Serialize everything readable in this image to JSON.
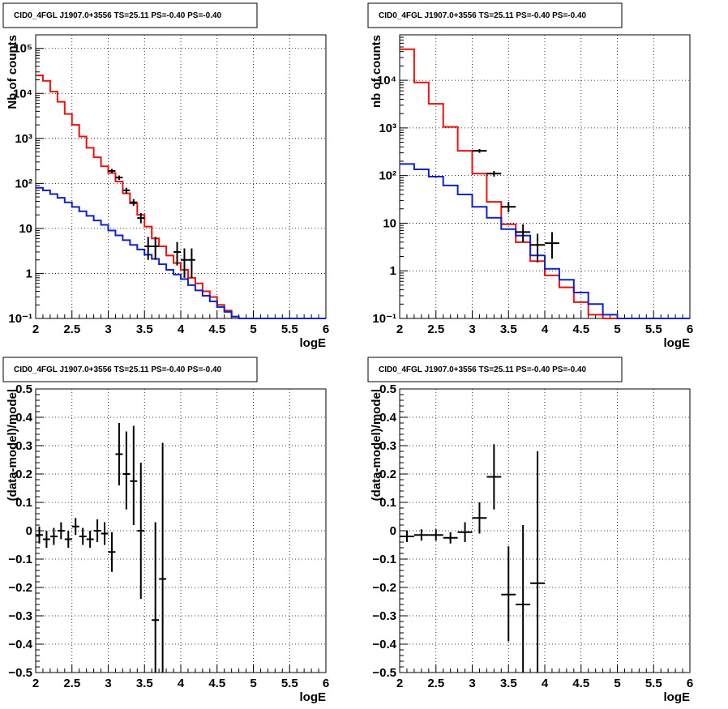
{
  "chart_data": [
    {
      "id": "top-left",
      "type": "line",
      "title": "CID0_4FGL J1907.0+3556 TS=25.11 PS=-0.40 PS=-0.40",
      "xlabel": "logE",
      "ylabel": "Nb of counts",
      "xlim": [
        2,
        6
      ],
      "ylim": [
        0.1,
        200000
      ],
      "ylog": true,
      "grid": true,
      "xticks": [
        2,
        2.5,
        3,
        3.5,
        4,
        4.5,
        5,
        5.5,
        6
      ],
      "xtick_labels": [
        "2",
        "2.5",
        "3",
        "3.5",
        "4",
        "4.5",
        "5",
        "5.5",
        "6"
      ],
      "yticks": [
        0.1,
        1,
        10,
        100,
        1000,
        10000,
        100000
      ],
      "ytick_labels": [
        "10⁻¹",
        "1",
        "10",
        "10²",
        "10³",
        "10⁴",
        "10⁵"
      ],
      "series": [
        {
          "kind": "step",
          "color": "#e8120f",
          "edges": [
            2,
            2.1,
            2.2,
            2.3,
            2.4,
            2.5,
            2.6,
            2.7,
            2.8,
            2.9,
            3.0,
            3.1,
            3.2,
            3.3,
            3.4,
            3.5,
            3.6,
            3.7,
            3.8,
            3.9,
            4.0,
            4.1,
            4.2,
            4.3,
            4.4,
            4.5,
            4.6,
            4.7,
            4.8,
            4.9,
            5.0,
            5.1,
            5.2,
            5.3,
            5.4,
            5.5,
            5.6,
            5.7,
            5.8,
            5.9,
            6.0
          ],
          "values": [
            25000,
            19000,
            11000,
            6500,
            3500,
            2000,
            1100,
            620,
            380,
            240,
            170,
            110,
            60,
            36,
            20,
            11,
            6,
            4,
            2.5,
            1.7,
            1.2,
            0.8,
            0.6,
            0.4,
            0.3,
            0.2,
            0.15,
            0.11,
            0.1,
            0.1,
            0.1,
            0.1,
            0.1,
            0.1,
            0.1,
            0.1,
            0.1,
            0.1,
            0.1,
            0.1
          ]
        },
        {
          "kind": "step",
          "color": "#0d22c8",
          "edges": [
            2,
            2.1,
            2.2,
            2.3,
            2.4,
            2.5,
            2.6,
            2.7,
            2.8,
            2.9,
            3.0,
            3.1,
            3.2,
            3.3,
            3.4,
            3.5,
            3.6,
            3.7,
            3.8,
            3.9,
            4.0,
            4.1,
            4.2,
            4.3,
            4.4,
            4.5,
            4.6,
            4.7,
            4.8,
            4.9,
            5.0,
            5.1,
            5.2,
            5.3,
            5.4,
            5.5,
            5.6,
            5.7,
            5.8,
            5.9,
            6.0
          ],
          "values": [
            80,
            70,
            58,
            48,
            38,
            30,
            24,
            19,
            15,
            12,
            9,
            7,
            5.5,
            4.3,
            3.4,
            2.6,
            2.1,
            1.6,
            1.2,
            0.95,
            0.75,
            0.55,
            0.42,
            0.32,
            0.24,
            0.18,
            0.14,
            0.11,
            0.1,
            0.1,
            0.1,
            0.1,
            0.1,
            0.1,
            0.1,
            0.1,
            0.1,
            0.1,
            0.1,
            0.1
          ]
        },
        {
          "kind": "points",
          "color": "#000000",
          "x": [
            3.05,
            3.15,
            3.25,
            3.35,
            3.45,
            3.55,
            3.65,
            3.95,
            4.05,
            4.15
          ],
          "xerr": [
            0.05,
            0.05,
            0.05,
            0.05,
            0.05,
            0.05,
            0.05,
            0.05,
            0.05,
            0.05
          ],
          "y": [
            190,
            135,
            70,
            38,
            17,
            4,
            4,
            3,
            2,
            2
          ],
          "ylow": [
            170,
            120,
            60,
            32,
            13,
            2,
            2,
            1.5,
            0.8,
            0.8
          ],
          "yhigh": [
            210,
            150,
            80,
            45,
            22,
            6.5,
            6.5,
            5,
            3.6,
            3.6
          ]
        }
      ]
    },
    {
      "id": "top-right",
      "type": "line",
      "title": "CID0_4FGL J1907.0+3556 TS=25.11 PS=-0.40 PS=-0.40",
      "xlabel": "logE",
      "ylabel": "nb of counts",
      "xlim": [
        2,
        6
      ],
      "ylim": [
        0.1,
        90000
      ],
      "ylog": true,
      "grid": true,
      "xticks": [
        2,
        2.5,
        3,
        3.5,
        4,
        4.5,
        5,
        5.5,
        6
      ],
      "xtick_labels": [
        "2",
        "2.5",
        "3",
        "3.5",
        "4",
        "4.5",
        "5",
        "5.5",
        "6"
      ],
      "yticks": [
        0.1,
        1,
        10,
        100,
        1000,
        10000
      ],
      "ytick_labels": [
        "10⁻¹",
        "1",
        "10",
        "10²",
        "10³",
        "10⁴"
      ],
      "series": [
        {
          "kind": "step",
          "color": "#e8120f",
          "edges": [
            2,
            2.2,
            2.4,
            2.6,
            2.8,
            3.0,
            3.2,
            3.4,
            3.6,
            3.8,
            4.0,
            4.2,
            4.4,
            4.6,
            4.8,
            5.0,
            5.2,
            5.4,
            5.6,
            5.8,
            6.0
          ],
          "values": [
            45000,
            9000,
            3200,
            1050,
            330,
            110,
            28,
            9.5,
            4,
            1.6,
            0.8,
            0.45,
            0.22,
            0.12,
            0.1,
            0.1,
            0.1,
            0.1,
            0.1,
            0.1
          ]
        },
        {
          "kind": "step",
          "color": "#0d22c8",
          "edges": [
            2,
            2.2,
            2.4,
            2.6,
            2.8,
            3.0,
            3.2,
            3.4,
            3.6,
            3.8,
            4.0,
            4.2,
            4.4,
            4.6,
            4.8,
            5.0,
            5.2,
            5.4,
            5.6,
            5.8,
            6.0
          ],
          "values": [
            175,
            135,
            95,
            62,
            40,
            22,
            13,
            7.5,
            5.5,
            2.1,
            1.1,
            0.65,
            0.35,
            0.2,
            0.12,
            0.1,
            0.1,
            0.1,
            0.1,
            0.1
          ]
        },
        {
          "kind": "points",
          "color": "#000000",
          "x": [
            3.1,
            3.3,
            3.5,
            3.7,
            3.9,
            4.1
          ],
          "xerr": [
            0.1,
            0.1,
            0.1,
            0.1,
            0.1,
            0.1
          ],
          "y": [
            330,
            110,
            22,
            6.5,
            3.5,
            3.8
          ],
          "ylow": [
            300,
            95,
            17,
            4,
            1.5,
            1.8
          ],
          "yhigh": [
            360,
            125,
            28,
            9.5,
            6,
            6.5
          ]
        }
      ]
    },
    {
      "id": "bottom-left",
      "type": "scatter",
      "title": "CID0_4FGL J1907.0+3556 TS=25.11 PS=-0.40 PS=-0.40",
      "xlabel": "logE",
      "ylabel": "(data-model)/model",
      "xlim": [
        2,
        6
      ],
      "ylim": [
        -0.5,
        0.5
      ],
      "ylog": false,
      "grid": true,
      "xticks": [
        2,
        2.5,
        3,
        3.5,
        4,
        4.5,
        5,
        5.5,
        6
      ],
      "xtick_labels": [
        "2",
        "2.5",
        "3",
        "3.5",
        "4",
        "4.5",
        "5",
        "5.5",
        "6"
      ],
      "yticks": [
        -0.5,
        -0.4,
        -0.3,
        -0.2,
        -0.1,
        0,
        0.1,
        0.2,
        0.3,
        0.4,
        0.5
      ],
      "ytick_labels": [
        "−0.5",
        "−0.4",
        "−0.3",
        "−0.2",
        "−0.1",
        "0",
        "0.1",
        "0.2",
        "0.3",
        "0.4",
        "0.5"
      ],
      "series": [
        {
          "kind": "points",
          "color": "#000000",
          "x": [
            2.05,
            2.15,
            2.25,
            2.35,
            2.45,
            2.55,
            2.65,
            2.75,
            2.85,
            2.95,
            3.05,
            3.15,
            3.25,
            3.35,
            3.45,
            3.65,
            3.75
          ],
          "xerr": [
            0.05,
            0.05,
            0.05,
            0.05,
            0.05,
            0.05,
            0.05,
            0.05,
            0.05,
            0.05,
            0.05,
            0.05,
            0.05,
            0.05,
            0.05,
            0.05,
            0.05
          ],
          "y": [
            -0.015,
            -0.03,
            -0.02,
            0.0,
            -0.03,
            0.015,
            -0.02,
            -0.03,
            0.0,
            -0.01,
            -0.075,
            0.27,
            0.2,
            0.175,
            0.0,
            -0.315,
            -0.17
          ],
          "ylow": [
            -0.045,
            -0.06,
            -0.05,
            -0.03,
            -0.06,
            -0.015,
            -0.05,
            -0.06,
            -0.04,
            -0.05,
            -0.145,
            0.16,
            0.075,
            0.02,
            -0.24,
            -0.5,
            -0.5
          ],
          "yhigh": [
            0.015,
            0.0,
            0.01,
            0.03,
            0.0,
            0.045,
            0.01,
            0.0,
            0.04,
            0.03,
            -0.005,
            0.38,
            0.35,
            0.37,
            0.24,
            0.03,
            0.31
          ]
        }
      ]
    },
    {
      "id": "bottom-right",
      "type": "scatter",
      "title": "CID0_4FGL J1907.0+3556 TS=25.11 PS=-0.40 PS=-0.40",
      "xlabel": "logE",
      "ylabel": "(data-model)/model",
      "xlim": [
        2,
        6
      ],
      "ylim": [
        -0.5,
        0.5
      ],
      "ylog": false,
      "grid": true,
      "xticks": [
        2,
        2.5,
        3,
        3.5,
        4,
        4.5,
        5,
        5.5,
        6
      ],
      "xtick_labels": [
        "2",
        "2.5",
        "3",
        "3.5",
        "4",
        "4.5",
        "5",
        "5.5",
        "6"
      ],
      "yticks": [
        -0.5,
        -0.4,
        -0.3,
        -0.2,
        -0.1,
        0,
        0.1,
        0.2,
        0.3,
        0.4,
        0.5
      ],
      "ytick_labels": [
        "−0.5",
        "−0.4",
        "−0.3",
        "−0.2",
        "−0.1",
        "0",
        "0.1",
        "0.2",
        "0.3",
        "0.4",
        "0.5"
      ],
      "series": [
        {
          "kind": "points",
          "color": "#000000",
          "x": [
            2.1,
            2.3,
            2.5,
            2.7,
            2.9,
            3.1,
            3.3,
            3.5,
            3.7,
            3.9
          ],
          "xerr": [
            0.1,
            0.1,
            0.1,
            0.1,
            0.1,
            0.1,
            0.1,
            0.1,
            0.1,
            0.1
          ],
          "y": [
            -0.02,
            -0.015,
            -0.015,
            -0.025,
            -0.005,
            0.045,
            0.19,
            -0.225,
            -0.26,
            -0.185
          ],
          "ylow": [
            -0.04,
            -0.035,
            -0.035,
            -0.045,
            -0.04,
            -0.01,
            0.075,
            -0.39,
            -0.5,
            -0.5
          ],
          "yhigh": [
            0.0,
            0.005,
            0.005,
            -0.005,
            0.03,
            0.1,
            0.305,
            -0.055,
            0.02,
            0.28
          ]
        }
      ]
    }
  ]
}
